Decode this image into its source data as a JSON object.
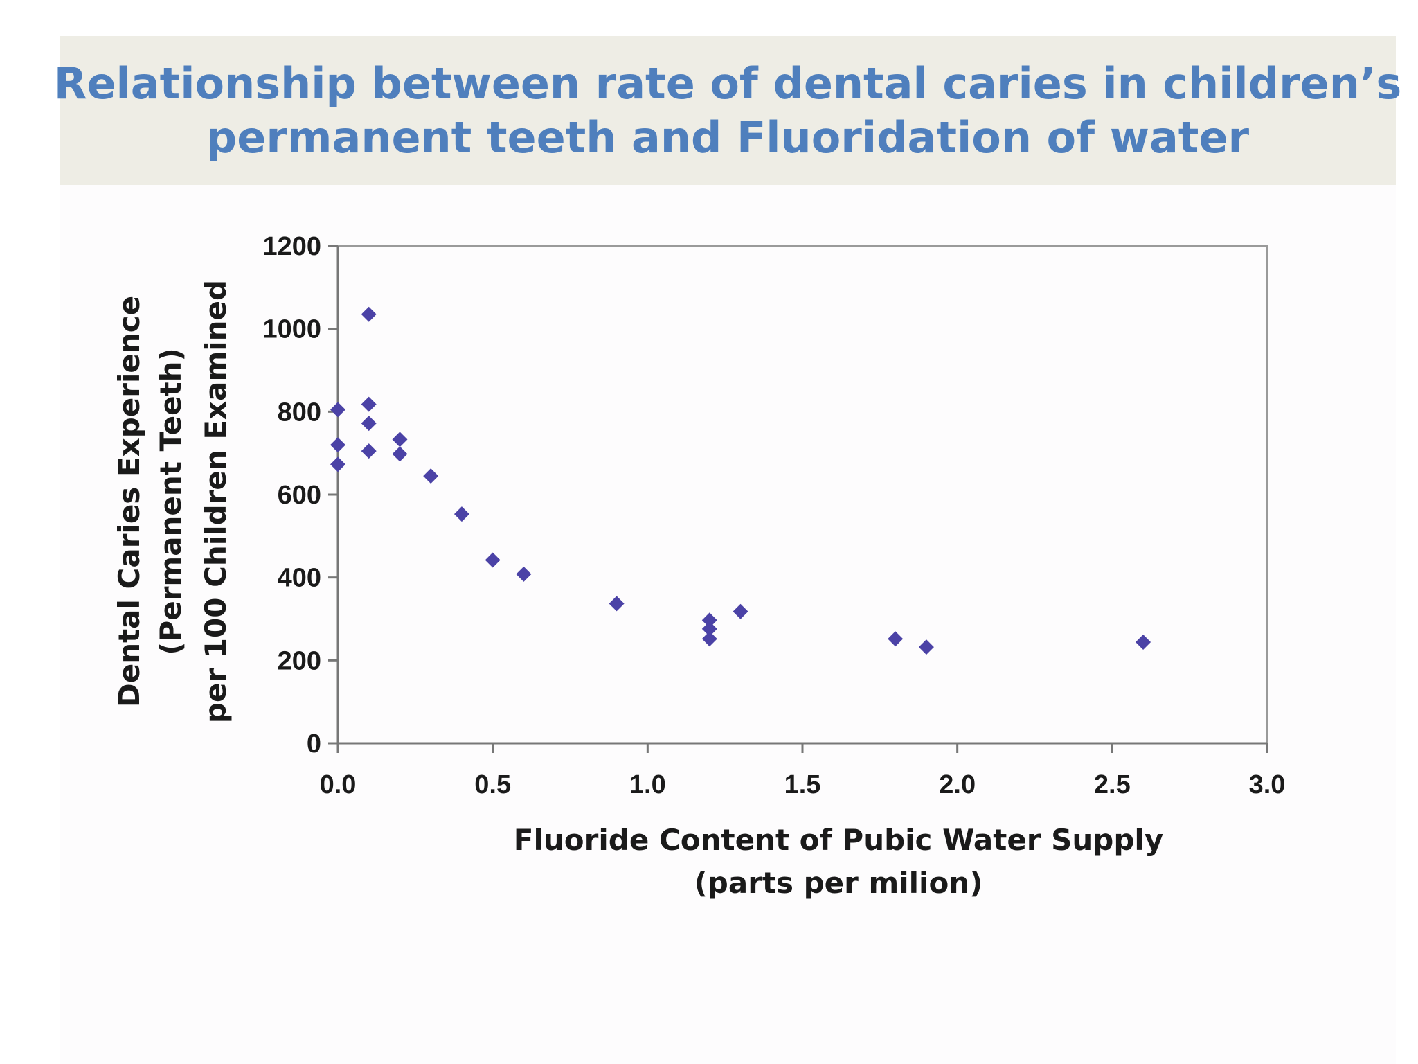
{
  "slide": {
    "title_lines": [
      "Relationship between rate of dental caries in children’s",
      "permanent teeth and Fluoridation of water"
    ],
    "title_color": "#4f7fbd",
    "band_color": "#eeede5"
  },
  "chart_data": {
    "type": "scatter",
    "marker": "diamond",
    "marker_color": "#4b42a6",
    "grid": false,
    "legend": "none",
    "xlabel": [
      "Fluoride Content of Pubic Water Supply",
      "(parts per milion)"
    ],
    "ylabel": [
      "Dental Caries Experience",
      "(Permanent Teeth)",
      "per 100 Children Examined"
    ],
    "xlim": [
      0,
      3
    ],
    "ylim": [
      0,
      1200
    ],
    "xticks": [
      0,
      0.5,
      1,
      1.5,
      2,
      2.5,
      3
    ],
    "xtick_labels": [
      "0.0",
      "0.5",
      "1.0",
      "1.5",
      "2.0",
      "2.5",
      "3.0"
    ],
    "yticks": [
      0,
      200,
      400,
      600,
      800,
      1000,
      1200
    ],
    "ytick_labels": [
      "0",
      "200",
      "400",
      "600",
      "800",
      "1000",
      "1200"
    ],
    "points": [
      {
        "x": 0.0,
        "y": 805
      },
      {
        "x": 0.0,
        "y": 720
      },
      {
        "x": 0.0,
        "y": 673
      },
      {
        "x": 0.1,
        "y": 1035
      },
      {
        "x": 0.1,
        "y": 818
      },
      {
        "x": 0.1,
        "y": 772
      },
      {
        "x": 0.1,
        "y": 705
      },
      {
        "x": 0.2,
        "y": 733
      },
      {
        "x": 0.2,
        "y": 698
      },
      {
        "x": 0.3,
        "y": 645
      },
      {
        "x": 0.4,
        "y": 553
      },
      {
        "x": 0.5,
        "y": 442
      },
      {
        "x": 0.6,
        "y": 408
      },
      {
        "x": 0.9,
        "y": 337
      },
      {
        "x": 1.2,
        "y": 297
      },
      {
        "x": 1.2,
        "y": 276
      },
      {
        "x": 1.2,
        "y": 252
      },
      {
        "x": 1.3,
        "y": 318
      },
      {
        "x": 1.8,
        "y": 252
      },
      {
        "x": 1.9,
        "y": 232
      },
      {
        "x": 2.6,
        "y": 244
      }
    ]
  }
}
